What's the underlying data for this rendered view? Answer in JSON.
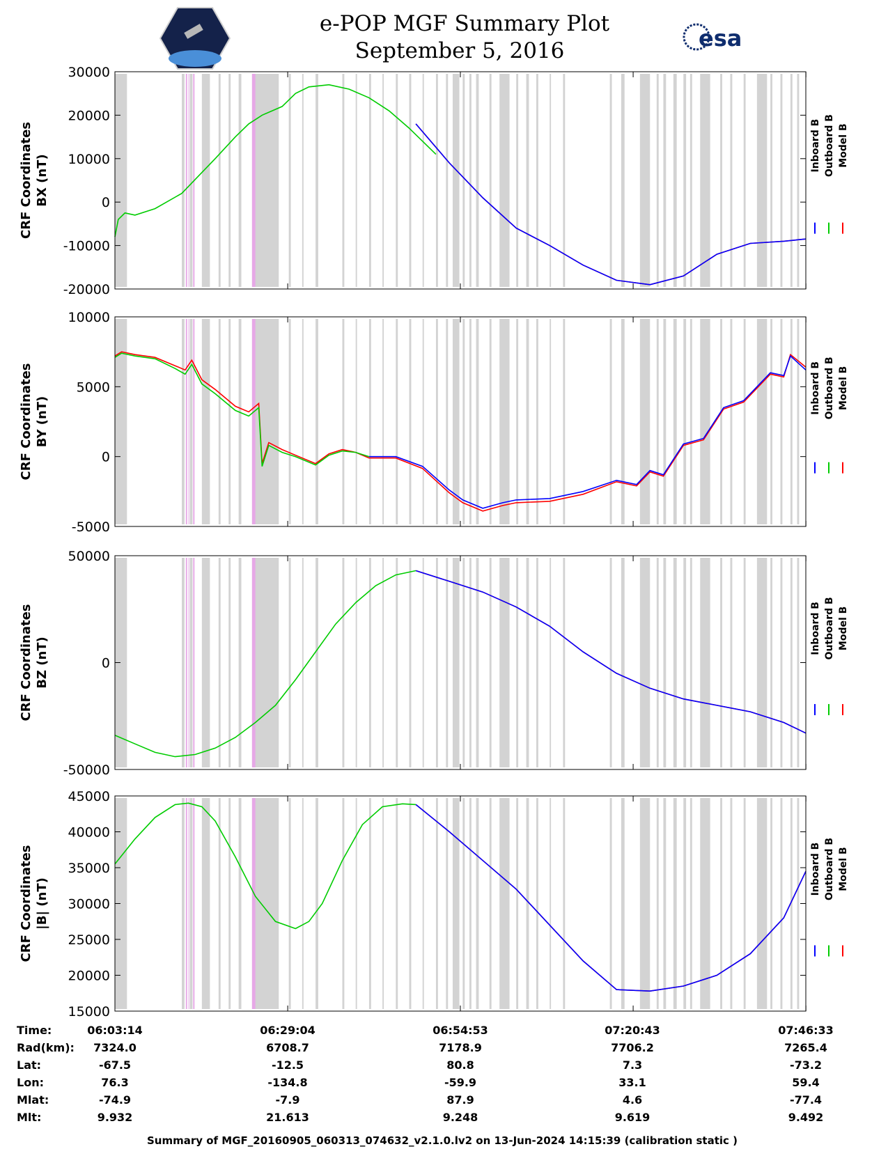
{
  "header": {
    "title_line1": "e-POP MGF Summary Plot",
    "title_line2": "September 5, 2016",
    "left_logo_icon": "satellite-mission-badge-icon",
    "right_logo_icon": "esa-logo-icon",
    "right_logo_text": "esa"
  },
  "legend": [
    "Inboard B",
    "Outboard B",
    "Model B"
  ],
  "colors": {
    "inboard": "#0000ff",
    "outboard": "#00cc00",
    "model": "#ff0000",
    "gap": "#d3d3d3",
    "flag": "#e6a8e6"
  },
  "chart_data": [
    {
      "type": "line",
      "ylabel_line1": "CRF Coordinates",
      "ylabel_line2": "BX (nT)",
      "ylim": [
        -20000,
        30000
      ],
      "yticks": [
        "30000",
        "20000",
        "10000",
        "0",
        "-10000",
        "-20000"
      ],
      "xlim_minutes": [
        0,
        103.3
      ],
      "series": [
        {
          "name": "Inboard B",
          "x": [
            45,
            50,
            55,
            60,
            65,
            70,
            75,
            80,
            85,
            90,
            95,
            100,
            103.3
          ],
          "y": [
            18000,
            9000,
            1000,
            -6000,
            -10000,
            -14500,
            -18000,
            -19000,
            -17000,
            -12000,
            -9500,
            -9000,
            -8500
          ]
        },
        {
          "name": "Outboard B",
          "x": [
            0,
            0.5,
            1.5,
            3,
            6,
            10,
            15,
            18,
            20,
            22,
            25,
            27,
            29,
            32,
            35,
            38,
            41,
            44,
            46,
            48
          ],
          "y": [
            -8000,
            -4000,
            -2500,
            -3000,
            -1500,
            2000,
            10000,
            15000,
            18000,
            20000,
            22000,
            25000,
            26500,
            27000,
            26000,
            24000,
            21000,
            17000,
            14000,
            11000
          ]
        },
        {
          "name": "Model B",
          "x": [
            45,
            50,
            55,
            60,
            65,
            70,
            75,
            80,
            85,
            90,
            95,
            100,
            103.3
          ],
          "y": [
            18000,
            9000,
            1000,
            -6000,
            -10000,
            -14500,
            -18000,
            -19000,
            -17000,
            -12000,
            -9500,
            -9000,
            -8500
          ]
        }
      ]
    },
    {
      "type": "line",
      "ylabel_line1": "CRF Coordinates",
      "ylabel_line2": "BY (nT)",
      "ylim": [
        -5000,
        10000
      ],
      "yticks": [
        "10000",
        "5000",
        "0",
        "-5000"
      ],
      "xlim_minutes": [
        0,
        103.3
      ],
      "series": [
        {
          "name": "Inboard B",
          "x": [
            38,
            42,
            46,
            50,
            52,
            55,
            58,
            60,
            65,
            70,
            75,
            78,
            80,
            82,
            85,
            88,
            91,
            94,
            98,
            100,
            101,
            103.3
          ],
          "y": [
            0,
            0,
            -700,
            -2400,
            -3100,
            -3700,
            -3300,
            -3100,
            -3000,
            -2500,
            -1700,
            -2000,
            -1000,
            -1300,
            900,
            1300,
            3500,
            4000,
            6000,
            5800,
            7200,
            6200
          ]
        },
        {
          "name": "Outboard B",
          "x": [
            0,
            1,
            3,
            6,
            9,
            10.5,
            11.5,
            13,
            15,
            18,
            20,
            21.5,
            22,
            23,
            25,
            27,
            30,
            32,
            34,
            36,
            38
          ],
          "y": [
            7100,
            7400,
            7200,
            7000,
            6300,
            5900,
            6600,
            5200,
            4500,
            3300,
            2900,
            3500,
            -700,
            800,
            300,
            0,
            -600,
            100,
            400,
            300,
            0
          ]
        },
        {
          "name": "Model B",
          "x": [
            0,
            1,
            3,
            6,
            9,
            10.5,
            11.5,
            13,
            15,
            18,
            20,
            21.5,
            22,
            23,
            25,
            27,
            30,
            32,
            34,
            36,
            38,
            42,
            46,
            50,
            52,
            55,
            58,
            60,
            65,
            70,
            75,
            78,
            80,
            82,
            85,
            88,
            91,
            94,
            98,
            100,
            101,
            103.3
          ],
          "y": [
            7200,
            7500,
            7300,
            7100,
            6500,
            6200,
            6900,
            5500,
            4800,
            3600,
            3200,
            3800,
            -500,
            1000,
            500,
            100,
            -500,
            200,
            500,
            300,
            -100,
            -100,
            -850,
            -2600,
            -3300,
            -3900,
            -3500,
            -3300,
            -3200,
            -2700,
            -1800,
            -2100,
            -1100,
            -1400,
            800,
            1200,
            3400,
            3900,
            5900,
            5700,
            7300,
            6400
          ]
        }
      ]
    },
    {
      "type": "line",
      "ylabel_line1": "CRF Coordinates",
      "ylabel_line2": "BZ (nT)",
      "ylim": [
        -50000,
        50000
      ],
      "yticks": [
        "50000",
        "0",
        "-50000"
      ],
      "xlim_minutes": [
        0,
        103.3
      ],
      "series": [
        {
          "name": "Inboard B",
          "x": [
            45,
            50,
            55,
            60,
            65,
            70,
            75,
            80,
            85,
            90,
            95,
            100,
            103.3
          ],
          "y": [
            43000,
            38000,
            33000,
            26000,
            17000,
            5000,
            -5000,
            -12000,
            -17000,
            -20000,
            -23000,
            -28000,
            -33000
          ]
        },
        {
          "name": "Outboard B",
          "x": [
            0,
            3,
            6,
            9,
            12,
            15,
            18,
            21,
            24,
            27,
            30,
            33,
            36,
            39,
            42,
            45
          ],
          "y": [
            -34000,
            -38000,
            -42000,
            -44000,
            -43000,
            -40000,
            -35000,
            -28000,
            -20000,
            -8000,
            5000,
            18000,
            28000,
            36000,
            41000,
            43000
          ]
        },
        {
          "name": "Model B",
          "x": [
            45,
            50,
            55,
            60,
            65,
            70,
            75,
            80,
            85,
            90,
            95,
            100,
            103.3
          ],
          "y": [
            43000,
            38000,
            33000,
            26000,
            17000,
            5000,
            -5000,
            -12000,
            -17000,
            -20000,
            -23000,
            -28000,
            -33000
          ]
        }
      ]
    },
    {
      "type": "line",
      "ylabel_line1": "CRF Coordinates",
      "ylabel_line2": "|B| (nT)",
      "ylim": [
        15000,
        45000
      ],
      "yticks": [
        "45000",
        "40000",
        "35000",
        "30000",
        "25000",
        "20000",
        "15000"
      ],
      "xlim_minutes": [
        0,
        103.3
      ],
      "series": [
        {
          "name": "Inboard B",
          "x": [
            45,
            50,
            55,
            60,
            65,
            70,
            75,
            80,
            85,
            90,
            95,
            100,
            103.3
          ],
          "y": [
            43800,
            40000,
            36000,
            32000,
            27000,
            22000,
            18000,
            17800,
            18500,
            20000,
            23000,
            28000,
            34500
          ]
        },
        {
          "name": "Outboard B",
          "x": [
            0,
            3,
            6,
            9,
            11,
            13,
            15,
            18,
            21,
            24,
            27,
            29,
            31,
            34,
            37,
            40,
            43,
            45
          ],
          "y": [
            35500,
            39000,
            42000,
            43800,
            44000,
            43500,
            41500,
            36500,
            31000,
            27500,
            26500,
            27500,
            30000,
            36000,
            41000,
            43500,
            43900,
            43800
          ]
        },
        {
          "name": "Model B",
          "x": [
            45,
            50,
            55,
            60,
            65,
            70,
            75,
            80,
            85,
            90,
            95,
            100,
            103.3
          ],
          "y": [
            43800,
            40000,
            36000,
            32000,
            27000,
            22000,
            18000,
            17800,
            18500,
            20000,
            23000,
            28000,
            34500
          ]
        }
      ]
    }
  ],
  "gap_bands_minutes": [
    [
      0,
      1.8
    ],
    [
      10,
      10.4
    ],
    [
      11.2,
      11.6
    ],
    [
      13,
      14.2
    ],
    [
      15.5,
      15.8
    ],
    [
      17,
      17.3
    ],
    [
      18.5,
      18.9
    ],
    [
      20.5,
      24.5
    ],
    [
      26,
      26.3
    ],
    [
      28,
      28.2
    ],
    [
      30,
      30.4
    ],
    [
      34,
      34.3
    ],
    [
      36,
      36.2
    ],
    [
      38,
      38.3
    ],
    [
      40,
      40.2
    ],
    [
      42,
      42.3
    ],
    [
      44,
      44.3
    ],
    [
      46,
      46.2
    ],
    [
      48,
      48.3
    ],
    [
      49.5,
      49.8
    ],
    [
      50.5,
      51.5
    ],
    [
      52,
      52.3
    ],
    [
      53,
      53.3
    ],
    [
      54,
      54.4
    ],
    [
      56,
      56.3
    ],
    [
      57.5,
      59
    ],
    [
      60,
      60.3
    ],
    [
      61.5,
      61.9
    ],
    [
      63,
      63.3
    ],
    [
      65,
      65.2
    ],
    [
      67,
      67.3
    ],
    [
      74,
      74.3
    ],
    [
      75.7,
      76.2
    ],
    [
      78.5,
      80
    ],
    [
      81,
      81.3
    ],
    [
      82,
      82.4
    ],
    [
      83.5,
      84
    ],
    [
      85,
      85.4
    ],
    [
      86,
      86.3
    ],
    [
      87.5,
      89
    ],
    [
      90.5,
      90.8
    ],
    [
      92,
      92.3
    ],
    [
      94,
      94.3
    ],
    [
      96,
      97.5
    ],
    [
      98,
      98.3
    ],
    [
      99.5,
      99.8
    ],
    [
      101,
      101.3
    ],
    [
      102,
      102.3
    ]
  ],
  "flag_bands_minutes": [
    [
      10.6,
      10.8
    ],
    [
      11.0,
      11.1
    ],
    [
      11.7,
      11.9
    ],
    [
      20.5,
      21
    ]
  ],
  "x_axis": {
    "tick_minutes": [
      0,
      25.833,
      51.65,
      77.483,
      103.317
    ]
  },
  "table": {
    "row_labels": [
      "Time:",
      "Rad(km):",
      "Lat:",
      "Lon:",
      "Mlat:",
      "Mlt:"
    ],
    "columns": [
      [
        "06:03:14",
        "7324.0",
        "-67.5",
        "76.3",
        "-74.9",
        "9.932"
      ],
      [
        "06:29:04",
        "6708.7",
        "-12.5",
        "-134.8",
        "-7.9",
        "21.613"
      ],
      [
        "06:54:53",
        "7178.9",
        "80.8",
        "-59.9",
        "87.9",
        "9.248"
      ],
      [
        "07:20:43",
        "7706.2",
        "7.3",
        "33.1",
        "4.6",
        "9.619"
      ],
      [
        "07:46:33",
        "7265.4",
        "-73.2",
        "59.4",
        "-77.4",
        "9.492"
      ]
    ]
  },
  "footer": "Summary of MGF_20160905_060313_074632_v2.1.0.lv2 on 13-Jun-2024 14:15:39 (calibration static )"
}
